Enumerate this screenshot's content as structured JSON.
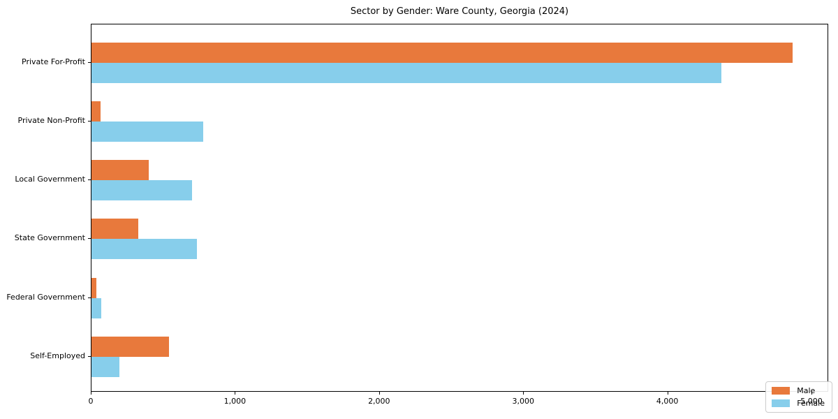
{
  "chart_data": {
    "type": "bar",
    "orientation": "horizontal",
    "title": "Sector by Gender: Ware County, Georgia (2024)",
    "categories": [
      "Private For-Profit",
      "Private Non-Profit",
      "Local Government",
      "State Government",
      "Federal Government",
      "Self-Employed"
    ],
    "series": [
      {
        "name": "Male",
        "color": "#e8793c",
        "values": [
          4864,
          63,
          397,
          325,
          34,
          538
        ]
      },
      {
        "name": "Female",
        "color": "#87ceeb",
        "values": [
          4370,
          775,
          698,
          731,
          68,
          194
        ]
      }
    ],
    "xlabel": "",
    "ylabel": "",
    "xlim": [
      0,
      5116
    ],
    "x_ticks": [
      0,
      1000,
      2000,
      3000,
      4000,
      5000
    ],
    "x_tick_labels": [
      "0",
      "1,000",
      "2,000",
      "3,000",
      "4,000",
      "5,000"
    ],
    "grid": false,
    "legend": {
      "position": "lower right"
    }
  }
}
